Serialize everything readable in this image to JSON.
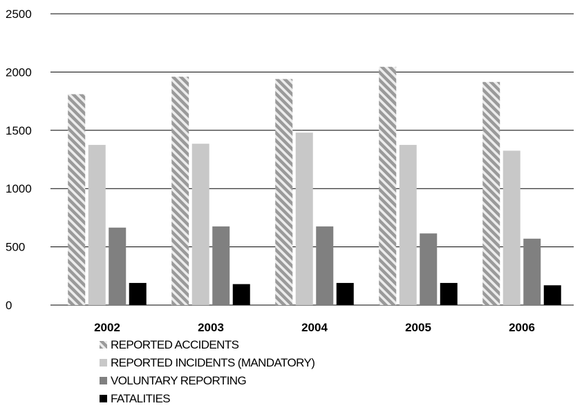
{
  "chart_data": {
    "type": "bar",
    "categories": [
      "2002",
      "2003",
      "2004",
      "2005",
      "2006"
    ],
    "series": [
      {
        "name": "REPORTED ACCIDENTS",
        "values": [
          1810,
          1960,
          1940,
          2045,
          1915
        ],
        "color": "#a6a6a6",
        "pattern": "diagonal-hatch"
      },
      {
        "name": "REPORTED INCIDENTS (MANDATORY)",
        "values": [
          1375,
          1385,
          1480,
          1375,
          1325
        ],
        "color": "#c8c8c8"
      },
      {
        "name": "VOLUNTARY REPORTING",
        "values": [
          665,
          675,
          675,
          615,
          570
        ],
        "color": "#808080"
      },
      {
        "name": "FATALITIES",
        "values": [
          190,
          180,
          190,
          190,
          170
        ],
        "color": "#000000"
      }
    ],
    "yticks": [
      "0",
      "500",
      "1000",
      "1500",
      "2000",
      "2500"
    ],
    "ylim": [
      0,
      2500
    ],
    "grid": true,
    "legend": "bottom-left"
  }
}
